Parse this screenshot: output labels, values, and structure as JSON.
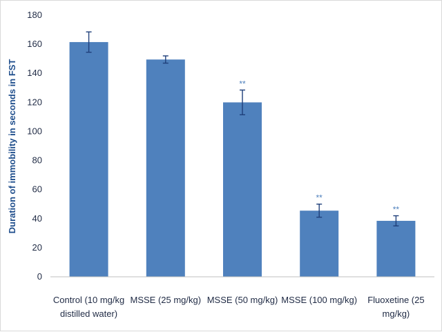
{
  "chart_data": {
    "type": "bar",
    "title": "",
    "xlabel": "",
    "ylabel": "Duration of immobility in seconds in FST",
    "ylim": [
      0,
      180
    ],
    "yticks": [
      0,
      20,
      40,
      60,
      80,
      100,
      120,
      140,
      160,
      180
    ],
    "grid": false,
    "legend": "none",
    "bar_color": "#4f81bd",
    "categories": [
      [
        "Control (10 mg/kg",
        "distilled water)"
      ],
      [
        "MSSE (25 mg/kg)"
      ],
      [
        "MSSE (50 mg/kg)"
      ],
      [
        "MSSE (100 mg/kg)"
      ],
      [
        "Fluoxetine  (25",
        "mg/kg)"
      ]
    ],
    "values": [
      161.5,
      149.5,
      120,
      45.5,
      38.5
    ],
    "errors": [
      7,
      2.5,
      8.5,
      4.5,
      3.5
    ],
    "annotations": [
      "",
      "",
      "**",
      "**",
      "**"
    ]
  }
}
